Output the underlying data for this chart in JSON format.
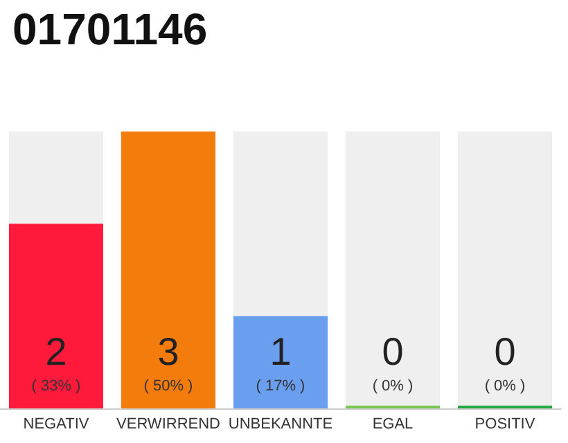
{
  "chart_data": {
    "type": "bar",
    "title": "01701146",
    "ylim": [
      0,
      3
    ],
    "tick_labels": "x",
    "categories": [
      "NEGATIV",
      "VERWIRREND",
      "UNBEKANNTE",
      "EGAL",
      "POSITIV"
    ],
    "values": [
      2,
      3,
      1,
      0,
      0
    ],
    "colors": [
      "#ff1a3c",
      "#f47c0c",
      "#6a9ff0",
      "#7dc855",
      "#22aa44"
    ],
    "value_labels": [
      "2\n( 33% )",
      "3\n( 50% )",
      "1\n( 17% )",
      "0\n( 0% )",
      "0\n( 0% )"
    ]
  }
}
